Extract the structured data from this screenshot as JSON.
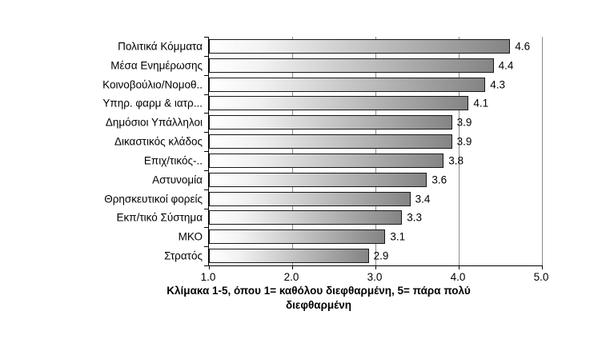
{
  "chart_data": {
    "type": "bar",
    "orientation": "horizontal",
    "categories": [
      "Πολιτικά Κόμματα",
      "Μέσα Ενημέρωσης",
      "Κοινοβούλιο/Νομοθ..",
      "Υπηρ. φαρμ & ιατρ...",
      "Δημόσιοι Υπάλληλοι",
      "Δικαστικός κλάδος",
      "Επιχ/τικός-..",
      "Αστυνομία",
      "Θρησκευτικοί φορείς",
      "Εκπ/τικό Σύστημα",
      "ΜΚΟ",
      "Στρατός"
    ],
    "values": [
      4.6,
      4.4,
      4.3,
      4.1,
      3.9,
      3.9,
      3.8,
      3.6,
      3.4,
      3.3,
      3.1,
      2.9
    ],
    "title": "",
    "xlabel": "Κλίμακα 1-5, όπου 1= καθόλου διεφθαρμένη, 5= πάρα πολύ διεφθαρμένη",
    "ylabel": "",
    "xlim": [
      1.0,
      5.0
    ],
    "x_ticks": [
      "1.0",
      "2.0",
      "3.0",
      "4.0",
      "5.0"
    ],
    "grid": "vertical gridlines at x ticks",
    "legend": "none",
    "data_labels": "outside end, one decimal",
    "bar_fill_gradient": [
      "#ffffff",
      "#848484"
    ],
    "bar_border_color": "#161616",
    "gridline_color": "#8c8c8c",
    "axis_color": "#000000"
  },
  "caption": {
    "line1": "Κλίμακα 1-5, όπου 1= καθόλου διεφθαρμένη, 5= πάρα πολύ",
    "line2": "διεφθαρμένη"
  }
}
